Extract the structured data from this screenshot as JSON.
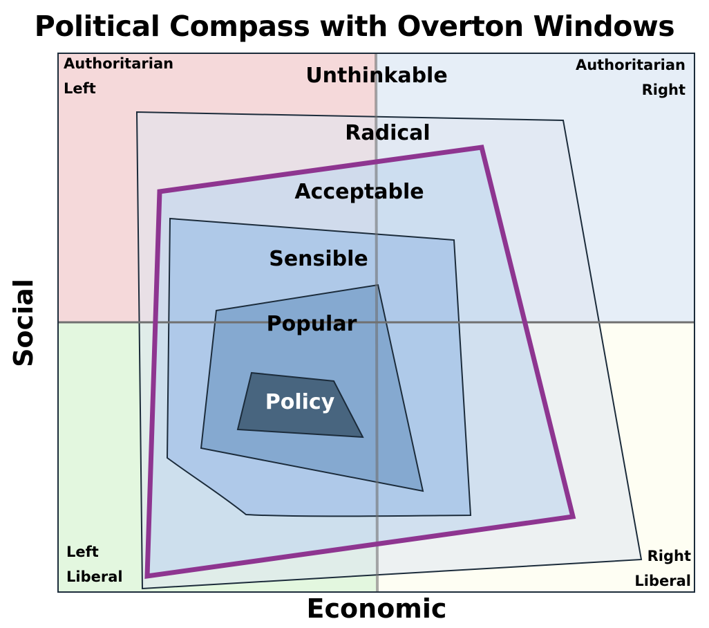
{
  "title": "Political Compass with Overton Windows",
  "axes": {
    "x_label": "Economic",
    "y_label": "Social"
  },
  "quadrants": {
    "top_left": {
      "line1": "Authoritarian",
      "line2": "Left",
      "color": "#f5d9da"
    },
    "top_right": {
      "line1": "Authoritarian",
      "line2": "Right",
      "color": "#e6eef7"
    },
    "bottom_left": {
      "line1": "Left",
      "line2": "Liberal",
      "color": "#e3f7df"
    },
    "bottom_right": {
      "line1": "Right",
      "line2": "Liberal",
      "color": "#fefef3"
    }
  },
  "windows": [
    {
      "label": "Unthinkable",
      "color": "#000000"
    },
    {
      "label": "Radical",
      "color": "#000000"
    },
    {
      "label": "Acceptable",
      "color": "#000000"
    },
    {
      "label": "Sensible",
      "color": "#000000"
    },
    {
      "label": "Popular",
      "color": "#000000"
    },
    {
      "label": "Policy",
      "color": "#ffffff"
    }
  ],
  "colors": {
    "axis_lines": "#707070",
    "overton_border": "#8e3590",
    "outline": "#1b2b3a",
    "radical_fill": "#dfe6f0",
    "acceptable_fill": "#c4d8ee",
    "sensible_fill": "#a9c5e8",
    "popular_fill": "#7fa4cc",
    "policy_fill": "#48657f"
  }
}
